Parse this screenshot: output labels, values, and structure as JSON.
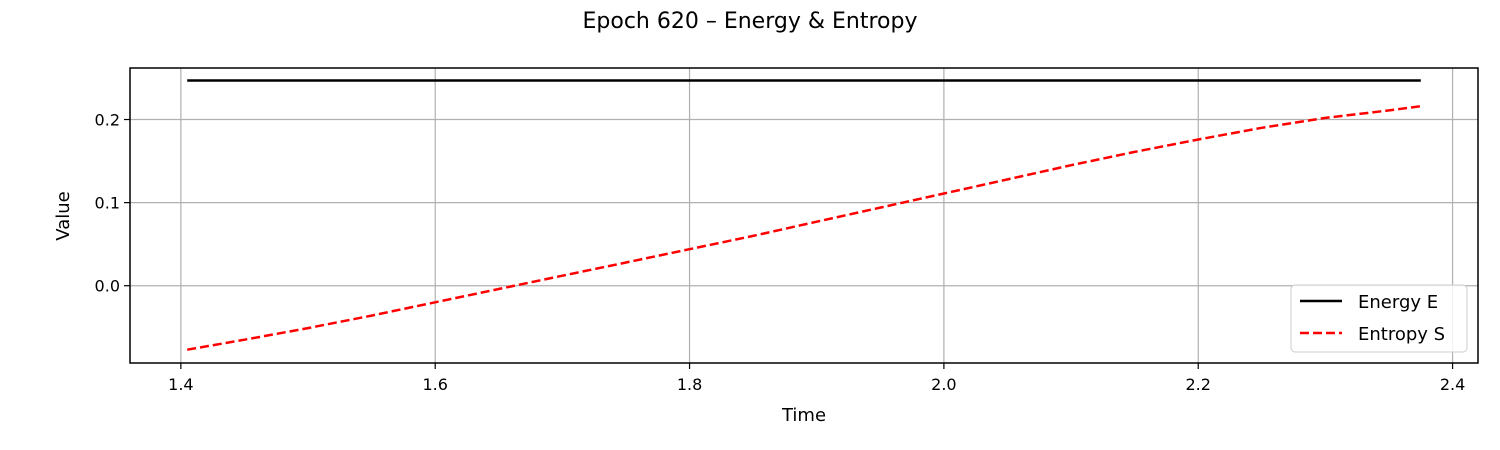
{
  "chart_data": {
    "type": "line",
    "title": "Epoch 620 – Energy & Entropy",
    "xlabel": "Time",
    "ylabel": "Value",
    "xlim": [
      1.36,
      2.42
    ],
    "ylim": [
      -0.093,
      0.262
    ],
    "xticks": [
      1.4,
      1.6,
      1.8,
      2.0,
      2.2,
      2.4
    ],
    "xtick_labels": [
      "1.4",
      "1.6",
      "1.8",
      "2.0",
      "2.2",
      "2.4"
    ],
    "yticks": [
      0.0,
      0.1,
      0.2
    ],
    "ytick_labels": [
      "0.0",
      "0.1",
      "0.2"
    ],
    "grid": true,
    "legend_position": "bottom-right",
    "series": [
      {
        "name": "Energy E",
        "color": "#000000",
        "style": "solid",
        "x": [
          1.405,
          1.6,
          1.8,
          2.0,
          2.2,
          2.375
        ],
        "y": [
          0.247,
          0.247,
          0.247,
          0.247,
          0.247,
          0.247
        ]
      },
      {
        "name": "Entropy S",
        "color": "#ff0000",
        "style": "dashed",
        "x": [
          1.405,
          1.45,
          1.5,
          1.55,
          1.6,
          1.65,
          1.7,
          1.75,
          1.8,
          1.85,
          1.9,
          1.95,
          2.0,
          2.05,
          2.1,
          2.15,
          2.2,
          2.25,
          2.3,
          2.35,
          2.375
        ],
        "y": [
          -0.077,
          -0.065,
          -0.051,
          -0.036,
          -0.02,
          -0.004,
          0.012,
          0.028,
          0.044,
          0.06,
          0.077,
          0.094,
          0.111,
          0.128,
          0.145,
          0.161,
          0.176,
          0.19,
          0.202,
          0.211,
          0.216
        ]
      }
    ]
  }
}
